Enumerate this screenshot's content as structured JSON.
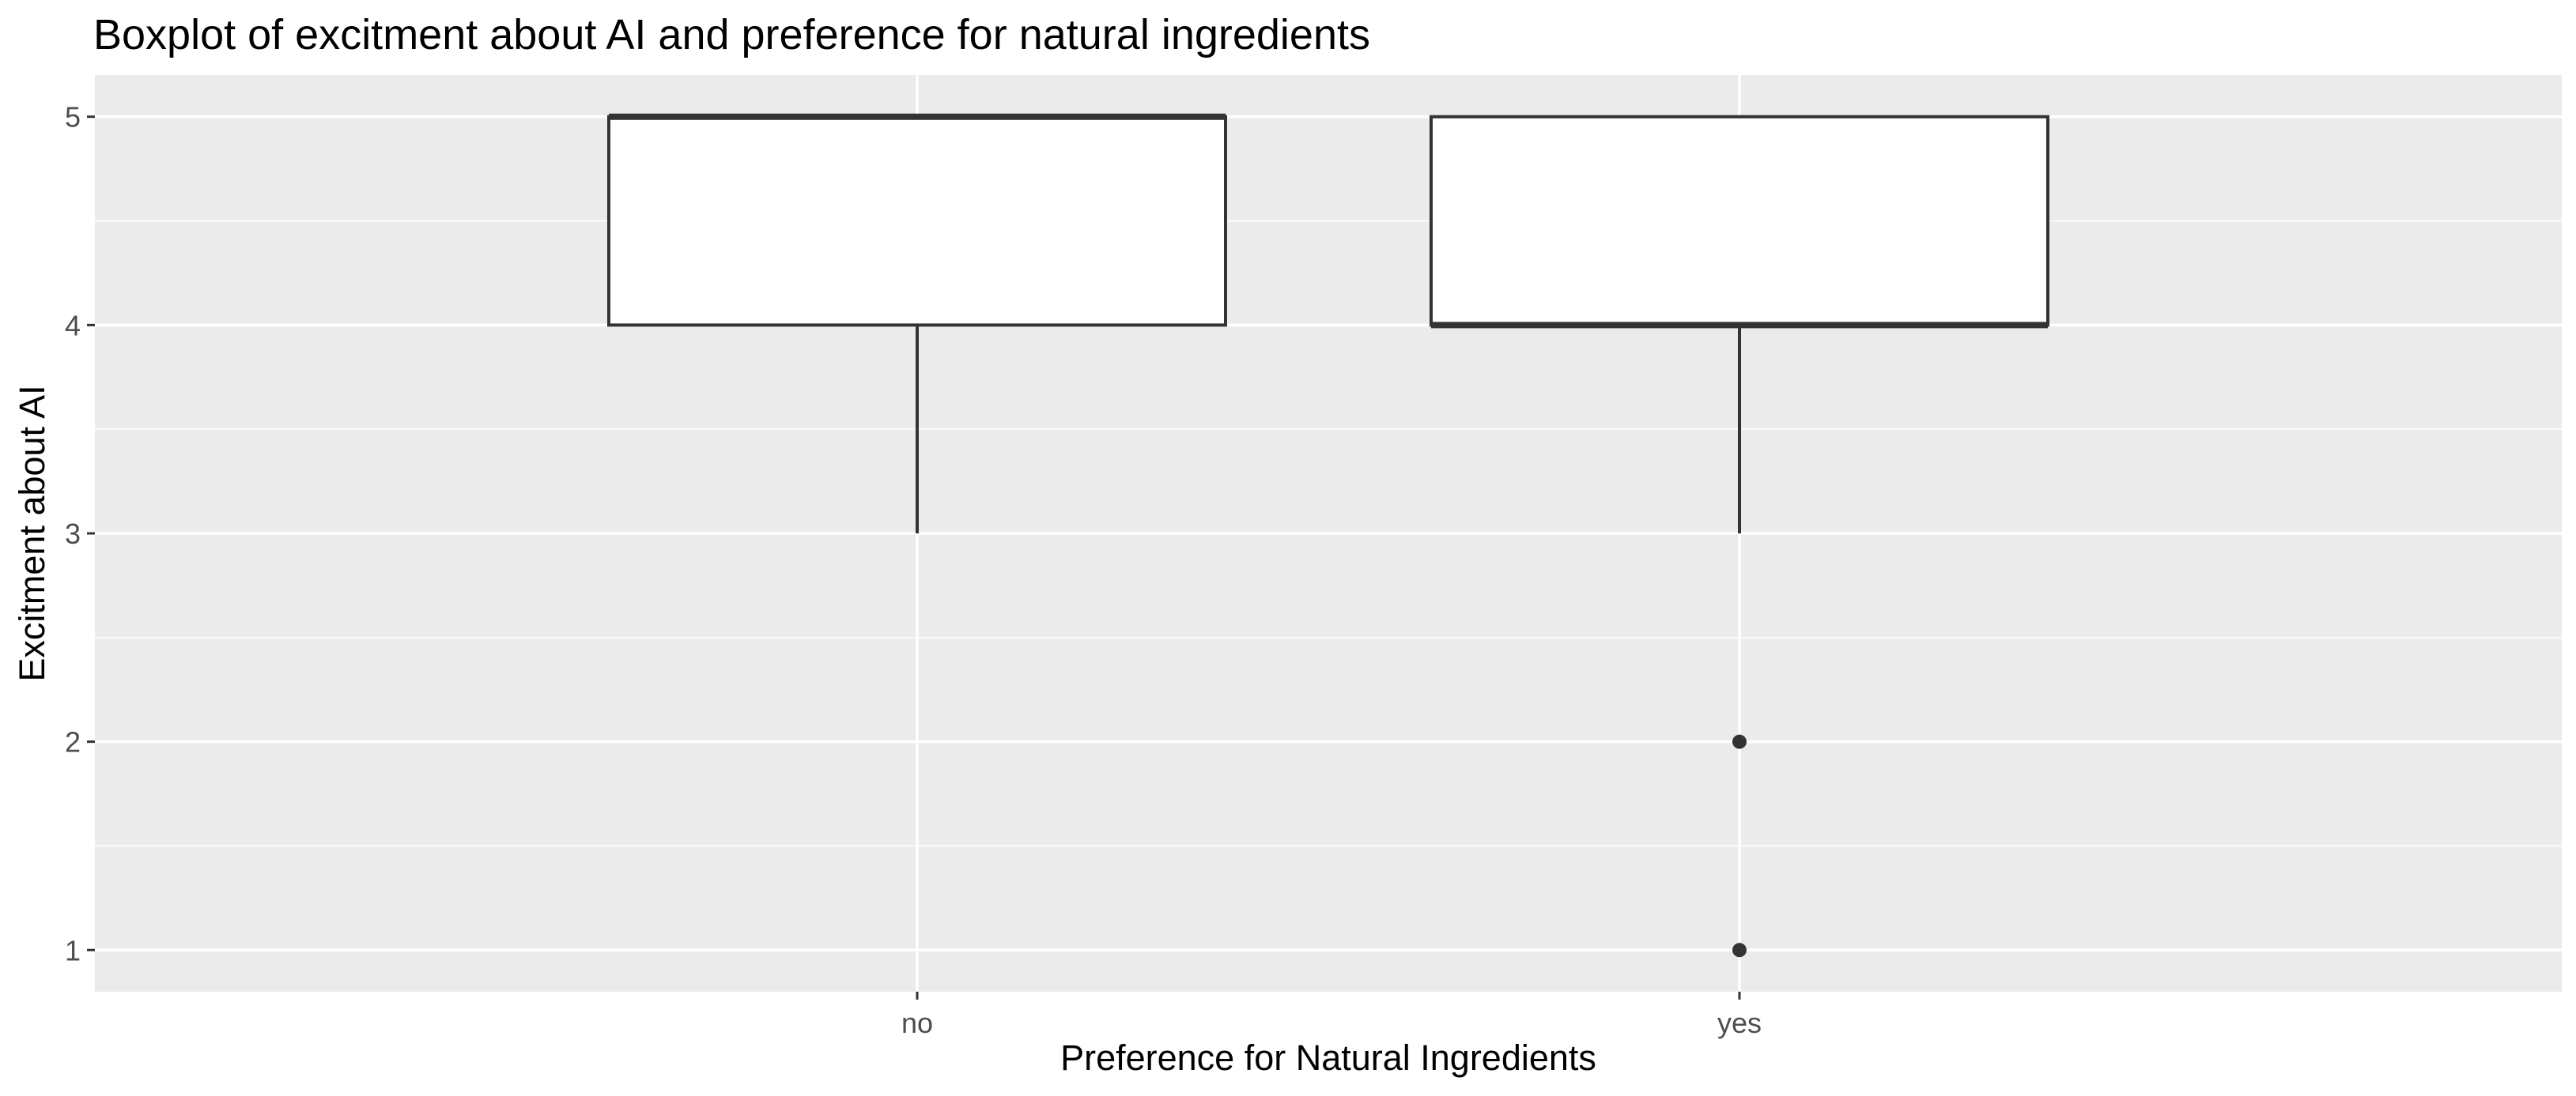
{
  "chart_data": {
    "type": "boxplot",
    "title": "Boxplot of excitment about AI and preference for natural ingredients",
    "xlabel": "Preference for Natural Ingredients",
    "ylabel": "Excitment about AI",
    "categories": [
      "no",
      "yes"
    ],
    "ylim": [
      0.8,
      5.2
    ],
    "yticks": [
      1,
      2,
      3,
      4,
      5
    ],
    "grid": true,
    "legend": "none",
    "boxes": [
      {
        "category": "no",
        "whisker_low": 3,
        "q1": 4,
        "median": 5,
        "q3": 5,
        "whisker_high": 5,
        "outliers": []
      },
      {
        "category": "yes",
        "whisker_low": 3,
        "q1": 4,
        "median": 4,
        "q3": 5,
        "whisker_high": 5,
        "outliers": [
          2,
          1
        ]
      }
    ],
    "colors": {
      "panel": "#ebebeb",
      "grid": "#ffffff",
      "box_fill": "#ffffff",
      "box_stroke": "#333333",
      "tick_text": "#4d4d4d"
    }
  }
}
